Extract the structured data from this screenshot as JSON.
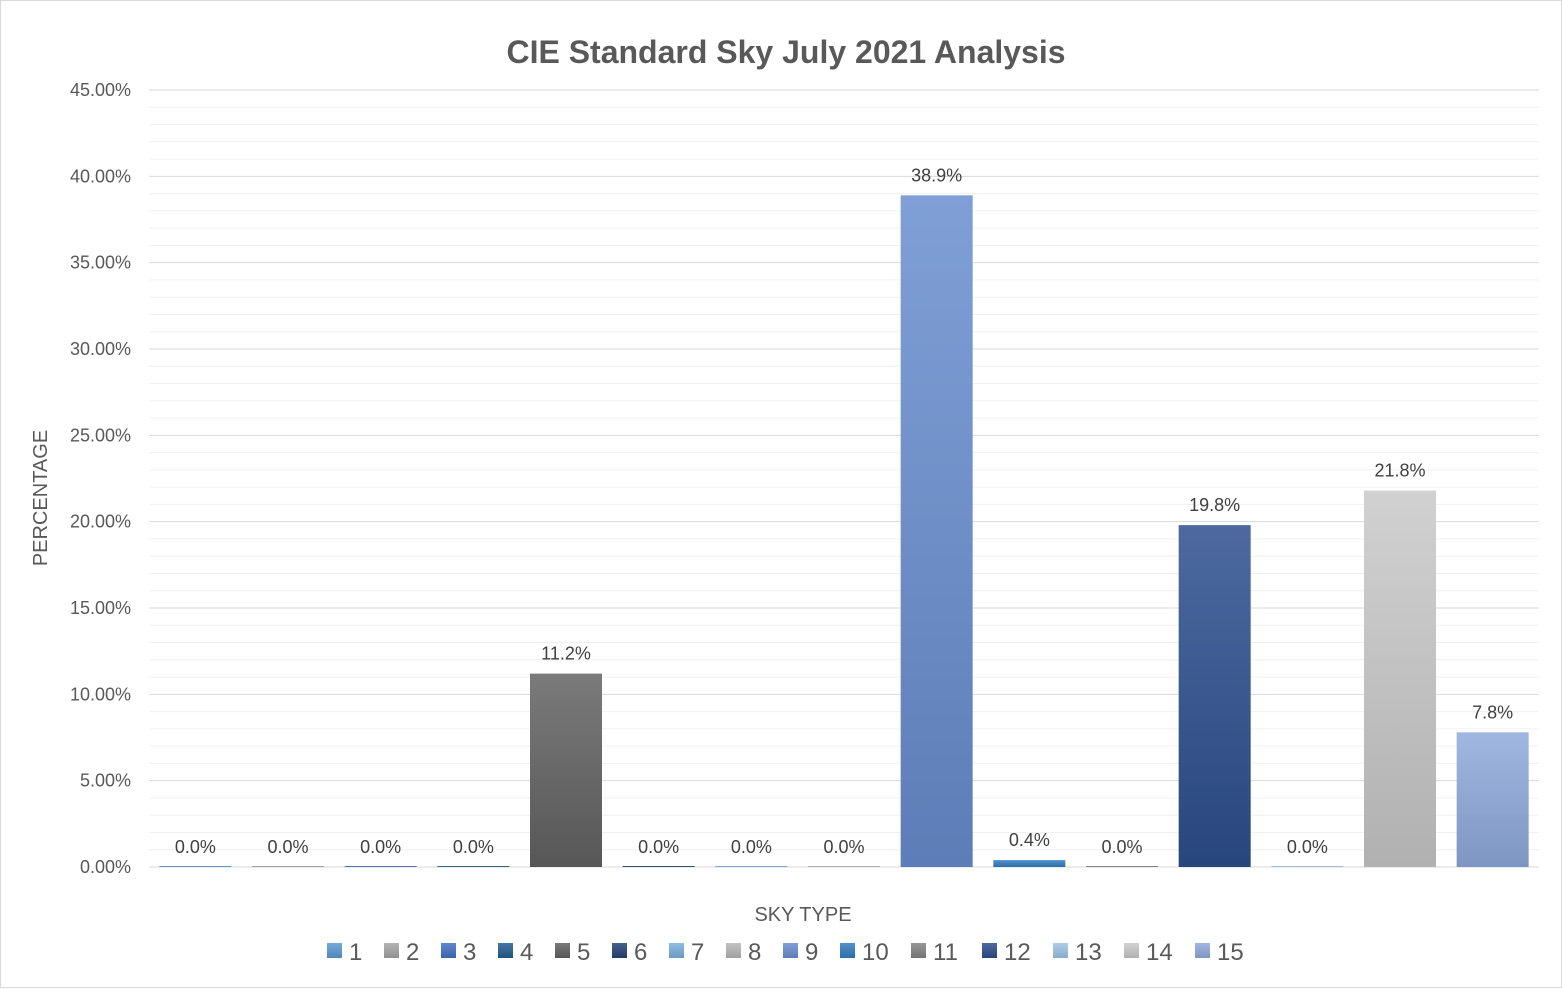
{
  "chart_data": {
    "type": "bar",
    "title": "CIE Standard Sky July 2021 Analysis",
    "xlabel": "SKY TYPE",
    "ylabel": "PERCENTAGE",
    "ylim": [
      0,
      45
    ],
    "yticks": [
      "0.00%",
      "5.00%",
      "10.00%",
      "15.00%",
      "20.00%",
      "25.00%",
      "30.00%",
      "35.00%",
      "40.00%",
      "45.00%"
    ],
    "categories": [
      "1",
      "2",
      "3",
      "4",
      "5",
      "6",
      "7",
      "8",
      "9",
      "10",
      "11",
      "12",
      "13",
      "14",
      "15"
    ],
    "values": [
      0.0,
      0.0,
      0.0,
      0.0,
      11.2,
      0.0,
      0.0,
      0.0,
      38.9,
      0.4,
      0.0,
      19.8,
      0.0,
      21.8,
      7.8
    ],
    "data_labels": [
      "0.0%",
      "0.0%",
      "0.0%",
      "0.0%",
      "11.2%",
      "0.0%",
      "0.0%",
      "0.0%",
      "38.9%",
      "0.4%",
      "0.0%",
      "19.8%",
      "0.0%",
      "21.8%",
      "7.8%"
    ],
    "colors": [
      "#5b9bd5",
      "#a5a5a5",
      "#4472c4",
      "#255e91",
      "#636363",
      "#264478",
      "#7cafdd",
      "#b7b7b7",
      "#698ed0",
      "#327dc2",
      "#848484",
      "#2e4f8f",
      "#9dc3e6",
      "#c9c9c9",
      "#8faadc"
    ],
    "grid": true,
    "legend": "bottom"
  }
}
